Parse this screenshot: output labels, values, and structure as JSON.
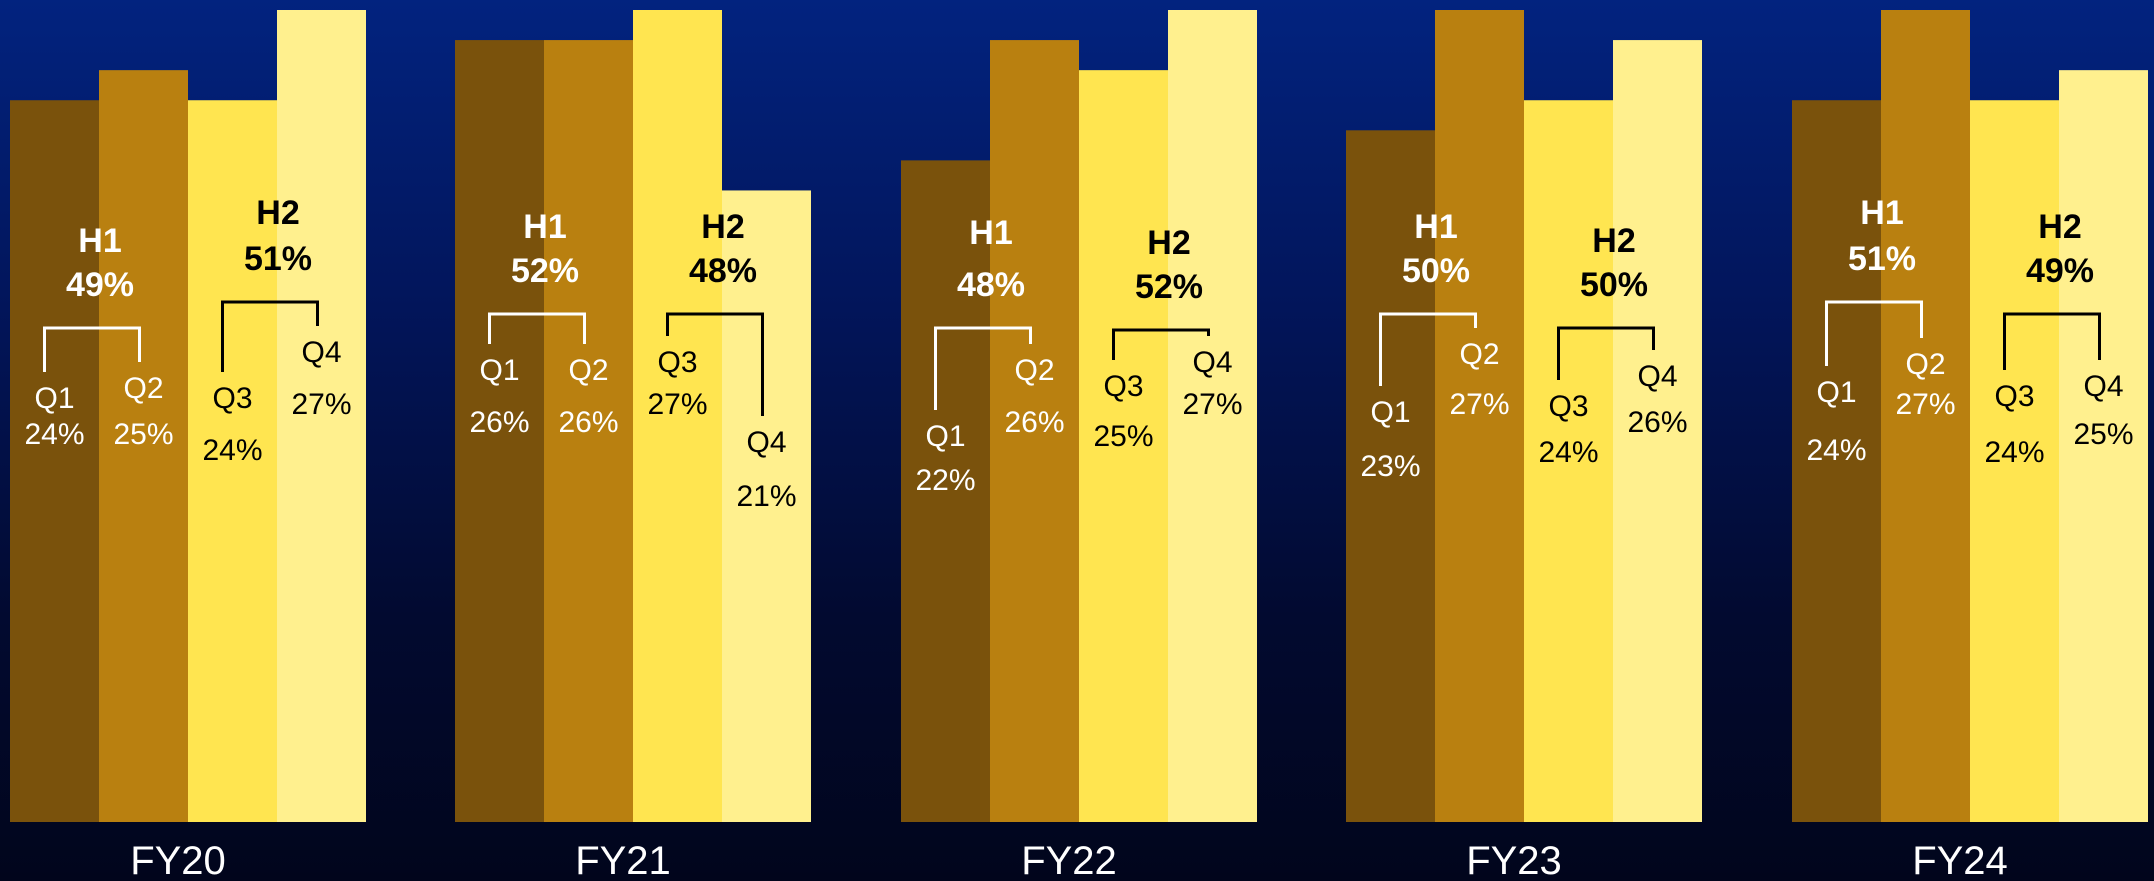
{
  "chart_data": {
    "type": "bar",
    "categories": [
      "FY20",
      "FY21",
      "FY22",
      "FY23",
      "FY24"
    ],
    "quarter_names": [
      "Q1",
      "Q2",
      "Q3",
      "Q4"
    ],
    "half_names": [
      "H1",
      "H2"
    ],
    "series": [
      {
        "name": "Q1",
        "values": [
          24,
          26,
          22,
          23,
          24
        ],
        "color": "#7a520c",
        "text_color": "#ffffff"
      },
      {
        "name": "Q2",
        "values": [
          25,
          26,
          26,
          27,
          27
        ],
        "color": "#b98010",
        "text_color": "#ffffff"
      },
      {
        "name": "Q3",
        "values": [
          24,
          27,
          25,
          24,
          24
        ],
        "color": "#ffe550",
        "text_color": "#000000"
      },
      {
        "name": "Q4",
        "values": [
          27,
          21,
          27,
          26,
          25
        ],
        "color": "#fff08e",
        "text_color": "#000000"
      }
    ],
    "halves": [
      {
        "name": "H1",
        "values": [
          49,
          52,
          48,
          50,
          51
        ],
        "text_color": "#ffffff"
      },
      {
        "name": "H2",
        "values": [
          51,
          48,
          52,
          50,
          49
        ],
        "text_color": "#000000"
      }
    ],
    "value_suffix": "%",
    "ylim": [
      0,
      27
    ],
    "grid": false,
    "legend": "none",
    "title": "",
    "xlabel": "",
    "ylabel": ""
  }
}
